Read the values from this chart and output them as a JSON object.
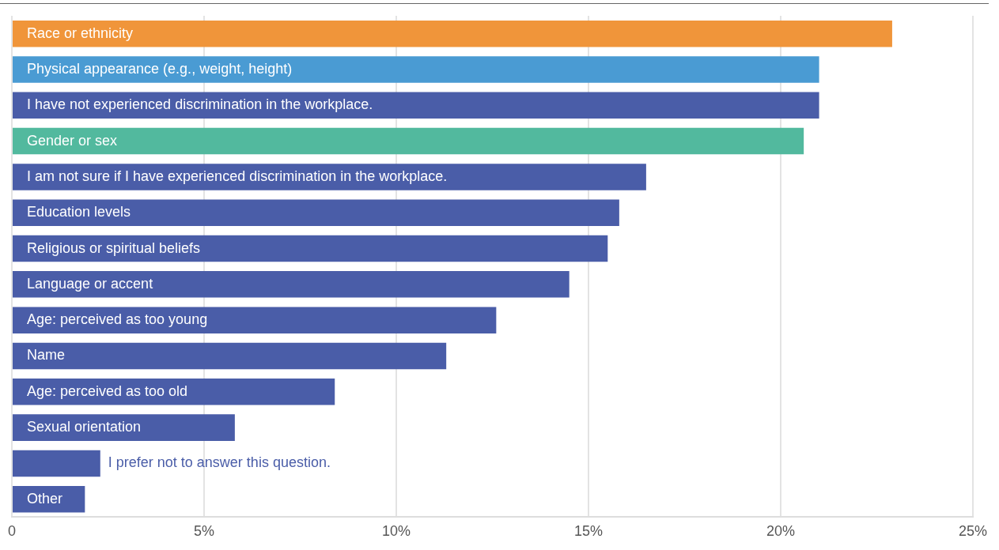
{
  "chart_data": {
    "type": "bar",
    "orientation": "horizontal",
    "categories": [
      "Race or ethnicity",
      "Physical appearance (e.g., weight, height)",
      "I have not experienced discrimination in the workplace.",
      "Gender or sex",
      "I am not sure if I have experienced discrimination in the workplace.",
      "Education levels",
      "Religious or spiritual beliefs",
      "Language or accent",
      "Age: perceived as too young",
      "Name",
      "Age: perceived as too old",
      "Sexual orientation",
      "I prefer not to answer this question.",
      "Other"
    ],
    "values": [
      22.9,
      21.0,
      21.0,
      20.6,
      16.5,
      15.8,
      15.5,
      14.5,
      12.6,
      11.3,
      8.4,
      5.8,
      2.3,
      1.9
    ],
    "colors": [
      "#f0953a",
      "#4a9bd3",
      "#4a5da8",
      "#52b99e",
      "#4a5da8",
      "#4a5da8",
      "#4a5da8",
      "#4a5da8",
      "#4a5da8",
      "#4a5da8",
      "#4a5da8",
      "#4a5da8",
      "#4a5da8",
      "#4a5da8"
    ],
    "xlim": [
      0,
      25
    ],
    "xticks": [
      0,
      {
        "value": 5,
        "label": "5%"
      },
      {
        "value": 10,
        "label": "10%"
      },
      {
        "value": 15,
        "label": "15%"
      },
      {
        "value": 20,
        "label": "20%"
      },
      {
        "value": 25,
        "label": "25%"
      }
    ],
    "grid": "x",
    "legend": false
  }
}
